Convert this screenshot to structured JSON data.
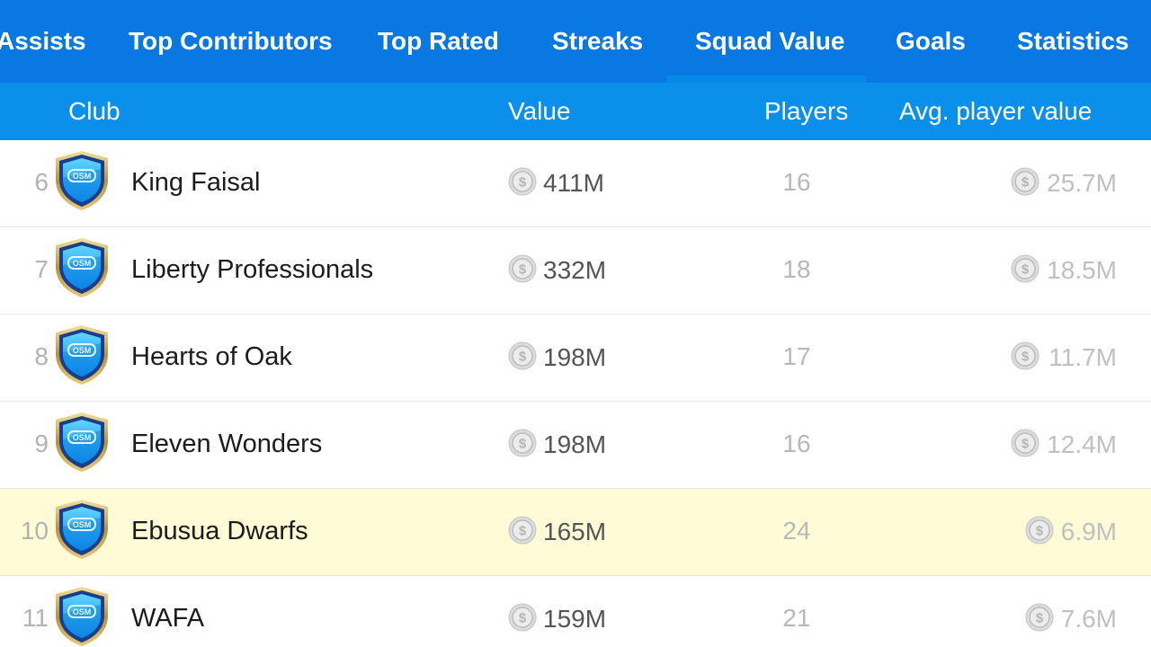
{
  "tabs": [
    {
      "label": "Assists",
      "active": false
    },
    {
      "label": "Top Contributors",
      "active": false
    },
    {
      "label": "Top Rated",
      "active": false
    },
    {
      "label": "Streaks",
      "active": false
    },
    {
      "label": "Squad Value",
      "active": true
    },
    {
      "label": "Goals",
      "active": false
    },
    {
      "label": "Statistics",
      "active": false
    }
  ],
  "columns": {
    "club": "Club",
    "value": "Value",
    "players": "Players",
    "avg": "Avg. player value"
  },
  "rows": [
    {
      "rank": "6",
      "club": "King Faisal",
      "value": "411M",
      "players": "16",
      "avg": "25.7M",
      "highlighted": false
    },
    {
      "rank": "7",
      "club": "Liberty Professionals",
      "value": "332M",
      "players": "18",
      "avg": "18.5M",
      "highlighted": false
    },
    {
      "rank": "8",
      "club": "Hearts of Oak",
      "value": "198M",
      "players": "17",
      "avg": "11.7M",
      "highlighted": false
    },
    {
      "rank": "9",
      "club": "Eleven Wonders",
      "value": "198M",
      "players": "16",
      "avg": "12.4M",
      "highlighted": false
    },
    {
      "rank": "10",
      "club": "Ebusua Dwarfs",
      "value": "165M",
      "players": "24",
      "avg": "6.9M",
      "highlighted": true
    },
    {
      "rank": "11",
      "club": "WAFA",
      "value": "159M",
      "players": "21",
      "avg": "7.6M",
      "highlighted": false
    }
  ],
  "icons": {
    "crest": "club-crest-icon",
    "coin": "coin-icon"
  },
  "colors": {
    "tabbar": "#0a78e2",
    "header": "#0a90ea",
    "highlight": "#fefbd6"
  }
}
